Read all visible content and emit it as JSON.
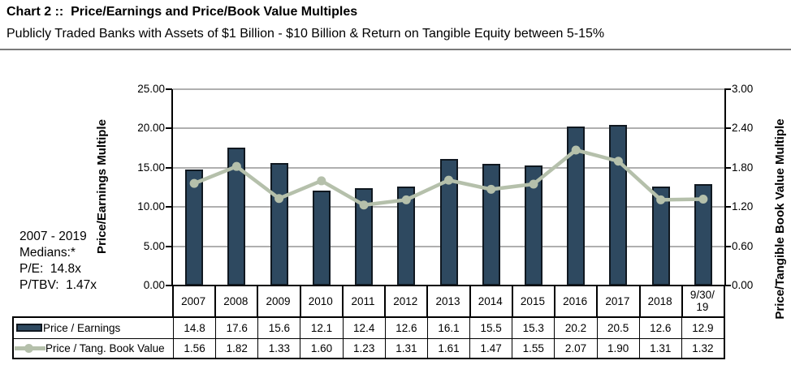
{
  "medians_note": {
    "lines": [
      "2007 - 2019",
      "Medians:*",
      "P/E:  14.8x",
      "P/TBV:  1.47x"
    ]
  },
  "chart_data": {
    "type": "combo_bar_line",
    "title": "Chart 2 ::  Price/Earnings and Price/Book Value Multiples",
    "subtitle": "Publicly Traded Banks with Assets of $1 Billion - $10 Billion & Return on Tangible Equity between 5-15%",
    "categories": [
      "2007",
      "2008",
      "2009",
      "2010",
      "2011",
      "2012",
      "2013",
      "2014",
      "2015",
      "2016",
      "2017",
      "2018",
      "9/30/\n19"
    ],
    "series": [
      {
        "name": "Price / Earnings",
        "type": "bar",
        "axis": "left",
        "decimals": 1,
        "values": [
          14.8,
          17.6,
          15.6,
          12.1,
          12.4,
          12.6,
          16.1,
          15.5,
          15.3,
          20.2,
          20.5,
          12.6,
          12.9
        ]
      },
      {
        "name": "Price / Tang. Book Value",
        "type": "line",
        "axis": "right",
        "decimals": 2,
        "values": [
          1.56,
          1.82,
          1.33,
          1.6,
          1.23,
          1.31,
          1.61,
          1.47,
          1.55,
          2.07,
          1.9,
          1.31,
          1.32
        ]
      }
    ],
    "left_axis": {
      "title": "Price/Earnings Multiple",
      "min": 0,
      "max": 25,
      "tick_step": 5,
      "tick_labels": [
        "25.00",
        "20.00",
        "15.00",
        "10.00",
        "5.00",
        "0.00"
      ]
    },
    "right_axis": {
      "title": "Price/Tangible Book Value Multiple",
      "min": 0,
      "max": 3,
      "tick_step": 0.6,
      "tick_labels": [
        "3.00",
        "2.40",
        "1.80",
        "1.20",
        "0.60",
        "0.00"
      ]
    },
    "grid": true,
    "legend_position": "data-table-left",
    "colors": {
      "bar_fill": "#2E4960",
      "bar_border": "#101820",
      "line": "#B5C0AB",
      "gridline": "#AFAFAF",
      "axis": "#000000"
    }
  }
}
